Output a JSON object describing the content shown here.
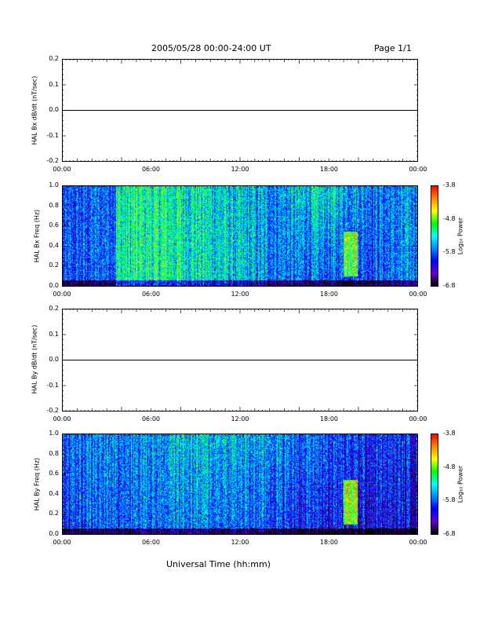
{
  "header": {
    "title": "2005/05/28  00:00-24:00 UT",
    "page": "Page 1/1"
  },
  "xaxis": {
    "label": "Universal Time (hh:mm)",
    "ticks": [
      "00:00",
      "06:00",
      "12:00",
      "18:00",
      "00:00"
    ]
  },
  "colorbar": {
    "label": "Log₁₀ Power",
    "ticks": [
      "-3.8",
      "-4.8",
      "-5.8",
      "-6.8"
    ],
    "colors": [
      "#ff0000",
      "#ff8800",
      "#ffff00",
      "#00ff00",
      "#00ffff",
      "#0088ff",
      "#0000ff",
      "#6600cc",
      "#000000"
    ]
  },
  "chart_data": [
    {
      "type": "line",
      "ylabel": "HAL Bx dB/dt (nT/sec)",
      "yticks": [
        "0.2",
        "0.1",
        "0.0",
        "-0.1",
        "-0.2"
      ],
      "ylim": [
        -0.2,
        0.2
      ],
      "x": [
        "00:00",
        "06:00",
        "12:00",
        "18:00",
        "00:00"
      ],
      "series": [
        {
          "values": [
            0.0,
            0.0,
            0.0,
            0.0,
            0.0
          ]
        }
      ]
    },
    {
      "type": "heatmap",
      "ylabel": "HAL Bx Freq (Hz)",
      "yticks": [
        "1.0",
        "0.8",
        "0.6",
        "0.4",
        "0.2",
        "0.0"
      ],
      "ylim": [
        0.0,
        1.0
      ],
      "zlim": [
        -6.8,
        -3.8
      ]
    },
    {
      "type": "line",
      "ylabel": "HAL By dB/dt (nT/sec)",
      "yticks": [
        "0.2",
        "0.1",
        "0.0",
        "-0.1",
        "-0.2"
      ],
      "ylim": [
        -0.2,
        0.2
      ],
      "x": [
        "00:00",
        "06:00",
        "12:00",
        "18:00",
        "00:00"
      ],
      "series": [
        {
          "values": [
            0.0,
            0.0,
            0.0,
            0.0,
            0.0
          ]
        }
      ]
    },
    {
      "type": "heatmap",
      "ylabel": "HAL By Freq (Hz)",
      "yticks": [
        "1.0",
        "0.8",
        "0.6",
        "0.4",
        "0.2",
        "0.0"
      ],
      "ylim": [
        0.0,
        1.0
      ],
      "zlim": [
        -6.8,
        -3.8
      ]
    }
  ]
}
